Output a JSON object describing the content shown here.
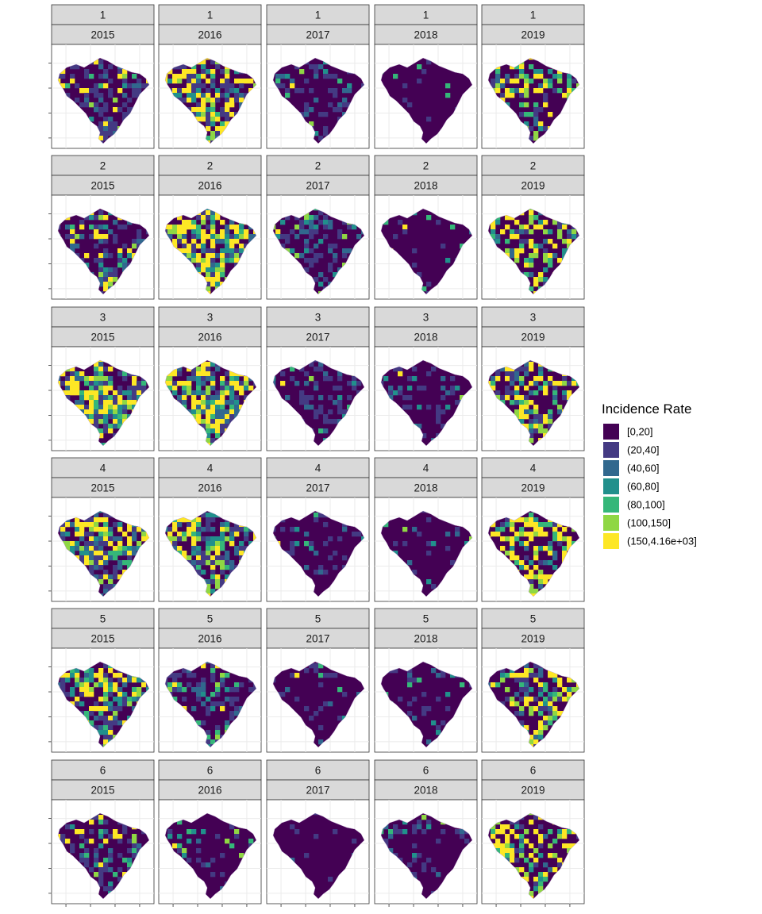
{
  "chart_data": {
    "type": "choropleth-facet-grid",
    "region": "Brazil",
    "facet_rows": [
      "1",
      "2",
      "3",
      "4",
      "5",
      "6"
    ],
    "facet_cols": [
      "2015",
      "2016",
      "2017",
      "2018",
      "2019"
    ],
    "legend": {
      "title": "Incidence Rate",
      "placement": "right",
      "bins": [
        {
          "label": "[0,20]",
          "color": "#440154"
        },
        {
          "label": "(20,40]",
          "color": "#443A83"
        },
        {
          "label": "(40,60]",
          "color": "#31688E"
        },
        {
          "label": "(60,80]",
          "color": "#21908C"
        },
        {
          "label": "(80,100]",
          "color": "#35B779"
        },
        {
          "label": "(100,150]",
          "color": "#8FD744"
        },
        {
          "label": "(150,4.16e+03]",
          "color": "#FDE725"
        }
      ]
    },
    "grid": true,
    "panel_fill": {
      "1": {
        "2015": [
          0.55,
          0.22,
          0.04,
          0.03,
          0.02,
          0.02,
          0.12
        ],
        "2016": [
          0.35,
          0.14,
          0.06,
          0.07,
          0.04,
          0.04,
          0.3
        ],
        "2017": [
          0.7,
          0.12,
          0.05,
          0.05,
          0.02,
          0.02,
          0.04
        ],
        "2018": [
          0.9,
          0.05,
          0.01,
          0.01,
          0.02,
          0.0,
          0.01
        ],
        "2019": [
          0.55,
          0.06,
          0.04,
          0.05,
          0.06,
          0.06,
          0.18
        ]
      },
      "2": {
        "2015": [
          0.5,
          0.18,
          0.08,
          0.04,
          0.02,
          0.02,
          0.16
        ],
        "2016": [
          0.3,
          0.1,
          0.08,
          0.08,
          0.04,
          0.08,
          0.32
        ],
        "2017": [
          0.62,
          0.16,
          0.07,
          0.06,
          0.03,
          0.04,
          0.02
        ],
        "2018": [
          0.85,
          0.06,
          0.03,
          0.02,
          0.03,
          0.0,
          0.01
        ],
        "2019": [
          0.52,
          0.06,
          0.04,
          0.05,
          0.06,
          0.07,
          0.2
        ]
      },
      "3": {
        "2015": [
          0.3,
          0.14,
          0.1,
          0.08,
          0.06,
          0.06,
          0.26
        ],
        "2016": [
          0.28,
          0.12,
          0.12,
          0.08,
          0.06,
          0.06,
          0.28
        ],
        "2017": [
          0.62,
          0.18,
          0.08,
          0.04,
          0.03,
          0.02,
          0.03
        ],
        "2018": [
          0.76,
          0.12,
          0.04,
          0.03,
          0.02,
          0.01,
          0.02
        ],
        "2019": [
          0.45,
          0.08,
          0.06,
          0.05,
          0.05,
          0.05,
          0.26
        ]
      },
      "4": {
        "2015": [
          0.32,
          0.14,
          0.1,
          0.08,
          0.06,
          0.04,
          0.26
        ],
        "2016": [
          0.34,
          0.14,
          0.08,
          0.08,
          0.06,
          0.08,
          0.22
        ],
        "2017": [
          0.8,
          0.1,
          0.03,
          0.03,
          0.02,
          0.01,
          0.01
        ],
        "2018": [
          0.82,
          0.08,
          0.03,
          0.02,
          0.02,
          0.01,
          0.02
        ],
        "2019": [
          0.46,
          0.06,
          0.04,
          0.04,
          0.05,
          0.05,
          0.3
        ]
      },
      "5": {
        "2015": [
          0.4,
          0.16,
          0.06,
          0.08,
          0.04,
          0.06,
          0.2
        ],
        "2016": [
          0.56,
          0.18,
          0.06,
          0.04,
          0.04,
          0.04,
          0.08
        ],
        "2017": [
          0.8,
          0.1,
          0.04,
          0.02,
          0.02,
          0.01,
          0.01
        ],
        "2018": [
          0.75,
          0.12,
          0.04,
          0.03,
          0.02,
          0.02,
          0.02
        ],
        "2019": [
          0.5,
          0.08,
          0.06,
          0.04,
          0.06,
          0.06,
          0.2
        ]
      },
      "6": {
        "2015": [
          0.55,
          0.16,
          0.06,
          0.06,
          0.04,
          0.03,
          0.1
        ],
        "2016": [
          0.82,
          0.06,
          0.02,
          0.02,
          0.02,
          0.04,
          0.02
        ],
        "2017": [
          0.9,
          0.06,
          0.02,
          0.01,
          0.01,
          0.0,
          0.0
        ],
        "2018": [
          0.75,
          0.12,
          0.05,
          0.04,
          0.02,
          0.01,
          0.01
        ],
        "2019": [
          0.55,
          0.06,
          0.04,
          0.04,
          0.06,
          0.06,
          0.19
        ]
      }
    }
  }
}
